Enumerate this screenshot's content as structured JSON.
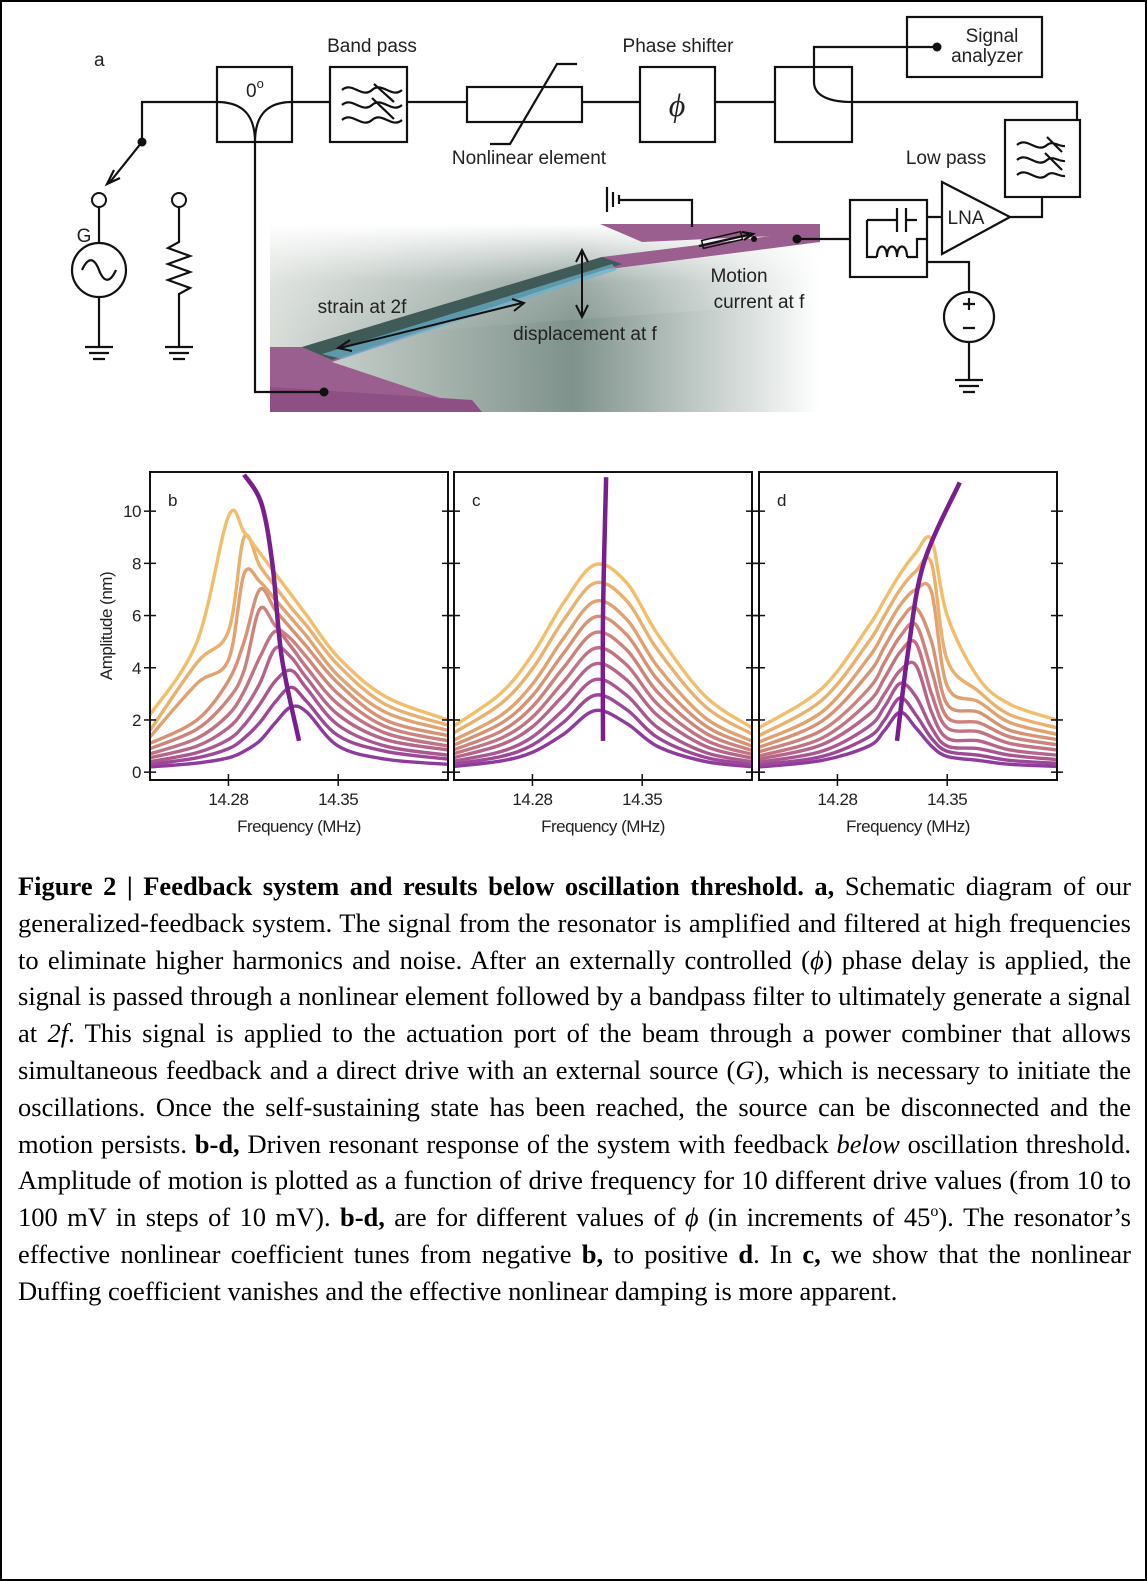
{
  "diagram": {
    "panel_label": "a",
    "combiner": {
      "text": "0",
      "sup": "o"
    },
    "band_pass": "Band pass",
    "nonlinear": "Nonlinear element",
    "phase_shifter": "Phase shifter",
    "phi": "ϕ",
    "signal_analyzer": [
      "Signal",
      "analyzer"
    ],
    "low_pass": "Low pass",
    "lna": "LNA",
    "source": "G",
    "strain": "strain at 2f",
    "displacement": "displacement at f",
    "motion": [
      "Motion",
      "current at f"
    ]
  },
  "chart_data": [
    {
      "type": "line",
      "panel_label": "b",
      "xlabel": "Frequency (MHz)",
      "ylabel": "Amplitude (nm)",
      "ytick_labels": true,
      "xlim": [
        14.23,
        14.42
      ],
      "ylim": [
        -0.3,
        11.5
      ],
      "xticks": [
        14.28,
        14.35
      ],
      "yticks": [
        0,
        2,
        4,
        6,
        8,
        10
      ],
      "x": [
        14.23,
        14.26,
        14.28,
        14.29,
        14.3,
        14.31,
        14.32,
        14.33,
        14.35,
        14.38,
        14.42
      ],
      "series": [
        {
          "color": "#8e3b9d",
          "values": [
            0.2,
            0.35,
            0.55,
            0.8,
            1.2,
            1.9,
            2.5,
            2.3,
            1.0,
            0.5,
            0.3
          ]
        },
        {
          "color": "#9c4896",
          "values": [
            0.3,
            0.55,
            0.9,
            1.3,
            1.9,
            2.7,
            3.25,
            2.7,
            1.4,
            0.8,
            0.5
          ]
        },
        {
          "color": "#aa5690",
          "values": [
            0.4,
            0.75,
            1.25,
            1.8,
            2.6,
            3.5,
            3.9,
            3.2,
            1.8,
            1.0,
            0.65
          ]
        },
        {
          "color": "#b66489",
          "values": [
            0.55,
            1.0,
            1.7,
            2.4,
            3.4,
            4.75,
            4.4,
            3.6,
            2.2,
            1.25,
            0.85
          ]
        },
        {
          "color": "#c27282",
          "values": [
            0.7,
            1.3,
            2.2,
            3.1,
            4.4,
            5.4,
            4.8,
            4.0,
            2.6,
            1.5,
            1.0
          ]
        },
        {
          "color": "#cd827c",
          "values": [
            0.9,
            1.65,
            2.8,
            3.9,
            6.25,
            5.6,
            5.1,
            4.4,
            3.0,
            1.75,
            1.2
          ]
        },
        {
          "color": "#d79275",
          "values": [
            1.1,
            2.0,
            3.5,
            5.0,
            7.0,
            6.2,
            5.5,
            4.8,
            3.4,
            2.0,
            1.4
          ]
        },
        {
          "color": "#e1a270",
          "values": [
            1.35,
            3.4,
            4.3,
            7.6,
            7.3,
            6.6,
            5.9,
            5.2,
            3.7,
            2.3,
            1.6
          ]
        },
        {
          "color": "#eab06d",
          "values": [
            1.6,
            4.2,
            5.4,
            9.0,
            7.9,
            7.1,
            6.3,
            5.6,
            4.1,
            2.6,
            1.8
          ]
        },
        {
          "color": "#f3be6b",
          "values": [
            2.2,
            5.0,
            9.8,
            9.2,
            8.4,
            7.6,
            6.8,
            6.0,
            4.4,
            2.9,
            2.0
          ]
        }
      ],
      "backbone": {
        "color": "#7a1d8e",
        "x": [
          14.325,
          14.314,
          14.308,
          14.301,
          14.29
        ],
        "values": [
          1.2,
          4.4,
          8.0,
          10.3,
          11.4
        ]
      }
    },
    {
      "type": "line",
      "panel_label": "c",
      "xlabel": "Frequency (MHz)",
      "ytick_labels": false,
      "xlim": [
        14.23,
        14.42
      ],
      "ylim": [
        -0.3,
        11.5
      ],
      "xticks": [
        14.28,
        14.35
      ],
      "yticks": [
        0,
        2,
        4,
        6,
        8,
        10
      ],
      "x": [
        14.23,
        14.26,
        14.28,
        14.3,
        14.32,
        14.34,
        14.36,
        14.39,
        14.42
      ],
      "series": [
        {
          "color": "#8e3b9d",
          "values": [
            0.22,
            0.43,
            0.76,
            1.46,
            2.36,
            1.87,
            0.98,
            0.41,
            0.21
          ]
        },
        {
          "color": "#9c4896",
          "values": [
            0.31,
            0.6,
            1.04,
            1.92,
            2.95,
            2.4,
            1.32,
            0.57,
            0.3
          ]
        },
        {
          "color": "#aa5690",
          "values": [
            0.42,
            0.79,
            1.35,
            2.4,
            3.55,
            2.95,
            1.7,
            0.76,
            0.4
          ]
        },
        {
          "color": "#b66489",
          "values": [
            0.56,
            1.05,
            1.74,
            2.96,
            4.15,
            3.54,
            2.16,
            1.0,
            0.54
          ]
        },
        {
          "color": "#c27282",
          "values": [
            0.71,
            1.3,
            2.11,
            3.48,
            4.75,
            4.11,
            2.59,
            1.24,
            0.68
          ]
        },
        {
          "color": "#cd827c",
          "values": [
            0.86,
            1.57,
            2.51,
            4.02,
            5.35,
            4.69,
            3.05,
            1.51,
            0.83
          ]
        },
        {
          "color": "#d79275",
          "values": [
            1.04,
            1.87,
            2.93,
            4.57,
            5.95,
            5.27,
            3.53,
            1.79,
            1.0
          ]
        },
        {
          "color": "#e1a270",
          "values": [
            1.23,
            2.18,
            3.37,
            5.14,
            6.55,
            5.86,
            4.03,
            2.09,
            1.19
          ]
        },
        {
          "color": "#eab06d",
          "values": [
            1.51,
            2.63,
            3.96,
            5.84,
            7.25,
            6.57,
            4.67,
            2.53,
            1.46
          ]
        },
        {
          "color": "#f3be6b",
          "values": [
            1.77,
            3.03,
            4.51,
            6.5,
            7.95,
            7.26,
            5.27,
            2.92,
            1.7
          ]
        }
      ],
      "backbone": {
        "color": "#7a1d8e",
        "x": [
          14.325,
          14.325,
          14.327
        ],
        "values": [
          1.2,
          6.0,
          11.3
        ]
      }
    },
    {
      "type": "line",
      "panel_label": "d",
      "xlabel": "Frequency (MHz)",
      "ytick_labels": false,
      "xlim": [
        14.23,
        14.42
      ],
      "ylim": [
        -0.3,
        11.5
      ],
      "xticks": [
        14.28,
        14.35
      ],
      "yticks": [
        0,
        2,
        4,
        6,
        8,
        10
      ],
      "x": [
        14.23,
        14.27,
        14.3,
        14.31,
        14.32,
        14.33,
        14.34,
        14.35,
        14.37,
        14.39,
        14.42
      ],
      "series": [
        {
          "color": "#8e3b9d",
          "values": [
            0.2,
            0.45,
            1.0,
            1.6,
            2.3,
            1.7,
            1.0,
            0.6,
            0.45,
            0.3,
            0.22
          ]
        },
        {
          "color": "#9c4896",
          "values": [
            0.28,
            0.6,
            1.35,
            2.0,
            2.85,
            2.2,
            1.3,
            0.8,
            0.65,
            0.45,
            0.34
          ]
        },
        {
          "color": "#aa5690",
          "values": [
            0.38,
            0.8,
            1.75,
            2.5,
            3.4,
            2.9,
            1.7,
            1.0,
            0.9,
            0.65,
            0.48
          ]
        },
        {
          "color": "#b66489",
          "values": [
            0.5,
            1.05,
            2.2,
            3.0,
            3.9,
            4.1,
            2.3,
            1.3,
            1.2,
            0.85,
            0.65
          ]
        },
        {
          "color": "#c27282",
          "values": [
            0.62,
            1.3,
            2.7,
            3.6,
            4.6,
            4.95,
            3.0,
            1.7,
            1.55,
            1.1,
            0.85
          ]
        },
        {
          "color": "#cd827c",
          "values": [
            0.78,
            1.6,
            3.2,
            4.2,
            5.2,
            5.65,
            3.9,
            2.1,
            1.9,
            1.35,
            1.05
          ]
        },
        {
          "color": "#d79275",
          "values": [
            0.95,
            1.95,
            3.8,
            4.8,
            5.8,
            6.3,
            5.0,
            2.6,
            2.3,
            1.6,
            1.25
          ]
        },
        {
          "color": "#e1a270",
          "values": [
            1.15,
            2.3,
            4.4,
            5.4,
            6.4,
            7.0,
            6.9,
            3.3,
            2.7,
            1.9,
            1.45
          ]
        },
        {
          "color": "#eab06d",
          "values": [
            1.4,
            2.75,
            5.0,
            6.0,
            7.0,
            7.7,
            8.0,
            4.3,
            3.1,
            2.2,
            1.7
          ]
        },
        {
          "color": "#f3be6b",
          "values": [
            1.7,
            3.2,
            5.6,
            6.6,
            7.6,
            8.4,
            8.9,
            6.0,
            3.6,
            2.6,
            2.0
          ]
        }
      ],
      "backbone": {
        "color": "#7a1d8e",
        "x": [
          14.318,
          14.325,
          14.335,
          14.358
        ],
        "values": [
          1.2,
          4.6,
          8.0,
          11.1
        ]
      }
    }
  ],
  "caption": [
    {
      "style": "bold",
      "text": "Figure 2 | Feedback system and results below oscillation threshold. a,"
    },
    {
      "style": "normal",
      "text": " Schematic diagram of our generalized-feedback system. The signal from the resonator is amplified and filtered at high frequencies to eliminate higher harmonics and noise. After an externally controlled ("
    },
    {
      "style": "italic",
      "text": "ϕ"
    },
    {
      "style": "normal",
      "text": ") phase delay is applied, the signal is passed through a nonlinear element followed by a bandpass filter to ultimately generate a signal at "
    },
    {
      "style": "italic",
      "text": "2f"
    },
    {
      "style": "normal",
      "text": ". This signal is applied to the actuation port of the beam through a power combiner that allows simultaneous feedback and a direct drive with an external source ("
    },
    {
      "style": "italic",
      "text": "G"
    },
    {
      "style": "normal",
      "text": "), which is necessary to initiate the oscillations. Once the self-sustaining state has been reached, the source can be disconnected and the motion persists. "
    },
    {
      "style": "bold",
      "text": "b-d,"
    },
    {
      "style": "normal",
      "text": " Driven resonant response of the system with feedback "
    },
    {
      "style": "italic",
      "text": "below"
    },
    {
      "style": "normal",
      "text": " oscillation threshold. Amplitude of motion is plotted as a function of drive frequency for 10 different drive values (from 10 to 100 mV in steps of 10 mV). "
    },
    {
      "style": "bold",
      "text": "b-d,"
    },
    {
      "style": "normal",
      "text": " are for different values of "
    },
    {
      "style": "italic",
      "text": "ϕ"
    },
    {
      "style": "normal",
      "text": " (in increments of 45"
    },
    {
      "style": "sup",
      "text": "o"
    },
    {
      "style": "normal",
      "text": "). The resonator’s effective nonlinear coefficient tunes from negative "
    },
    {
      "style": "bold",
      "text": "b,"
    },
    {
      "style": "normal",
      "text": " to positive "
    },
    {
      "style": "bold",
      "text": "d"
    },
    {
      "style": "normal",
      "text": ". In "
    },
    {
      "style": "bold",
      "text": "c,"
    },
    {
      "style": "normal",
      "text": " we show that the nonlinear Duffing coefficient vanishes and the effective nonlinear damping is more apparent."
    }
  ]
}
